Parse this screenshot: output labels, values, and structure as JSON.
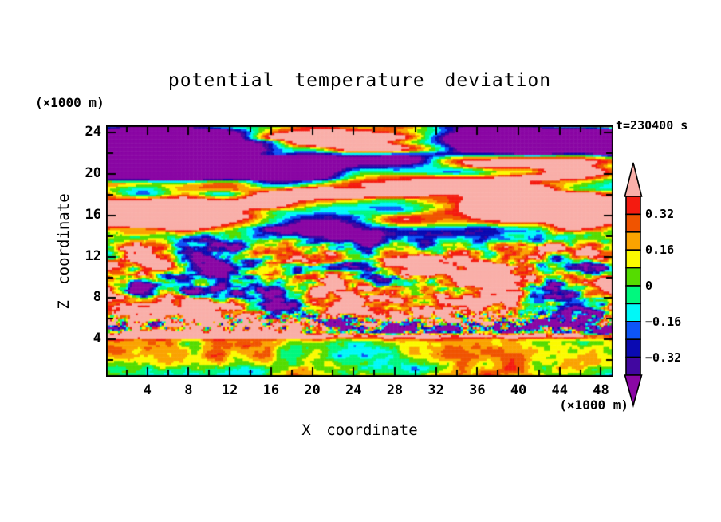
{
  "chart_data": {
    "type": "filled_contour_heatmap",
    "title": "potential temperature deviation",
    "timestamp": "t=230400 s",
    "x_axis": {
      "label": "X coordinate",
      "unit_label": "(×1000 m)",
      "range": [
        0,
        49.2
      ],
      "major_tick_labels": [
        4,
        8,
        12,
        16,
        20,
        24,
        28,
        32,
        36,
        40,
        44,
        48
      ],
      "minor_tick_step": 2
    },
    "z_axis": {
      "label": "Z coordinate",
      "unit_label": "(×1000 m)",
      "range": [
        0.4,
        24.7
      ],
      "major_tick_labels": [
        4,
        8,
        12,
        16,
        20,
        24
      ],
      "minor_tick_step": 2
    },
    "contour_levels": [
      -0.4,
      -0.32,
      -0.24,
      -0.16,
      -0.08,
      0,
      0.08,
      0.16,
      0.24,
      0.32,
      0.4
    ],
    "palette_low_to_high": [
      "#8A06A4",
      "#4107A0",
      "#0A0AB2",
      "#0D55F8",
      "#00F8F8",
      "#00F87E",
      "#55DC00",
      "#FBFA00",
      "#FAA300",
      "#F05400",
      "#F41B10",
      "#F9AFA9"
    ],
    "colorbar": {
      "labels": [
        {
          "text": "0.32",
          "boundary_index": 1
        },
        {
          "text": "0.16",
          "boundary_index": 3
        },
        {
          "text": "0",
          "boundary_index": 5
        },
        {
          "text": "−0.16",
          "boundary_index": 7
        },
        {
          "text": "−0.32",
          "boundary_index": 9
        }
      ],
      "over_color": "#F9AFA9",
      "under_color": "#8A06A4"
    },
    "frame_color": "#000000",
    "background_color": "#FFFFFF",
    "field_description": {
      "summary": "2D vertical cross-section of potential temperature deviation (K) in a stratified turbulent atmosphere at t=230400 s; values saturate beyond ±0.40.",
      "upper_region_z_13_to_25": "horizontally elongated alternating bands of strong positive (pink, >0.40) and strong negative (purple, <-0.40) deviation with thin rainbow transition edges",
      "middle_region_z_5_to_13": "fine-scale turbulence spanning the full range -0.4 to 0.4 with green/yellow background and red, pink, blue and purple eddies",
      "interface_z_4_to_5": "thin quasi-horizontal salmon-pink band (>0.32) topped by a granular mixed layer",
      "boundary_layer_z_0_to_4": "smooth convective cells, mostly 0 to 0.16 (yellow/green) with cyan cores near -0.1 and orange/red plumes up to 0.3"
    }
  }
}
